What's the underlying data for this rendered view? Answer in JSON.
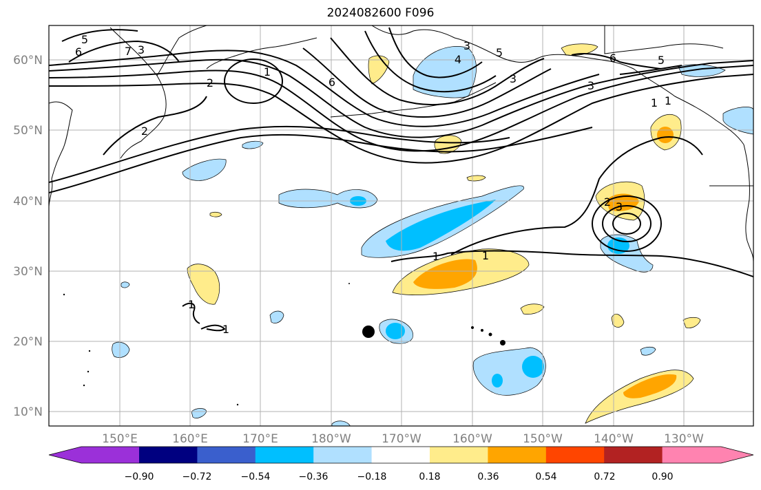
{
  "title": "2024082600 F096",
  "lat_labels": [
    "60°N",
    "50°N",
    "40°N",
    "30°N",
    "20°N",
    "10°N"
  ],
  "lon_labels": [
    "150°E",
    "160°E",
    "170°E",
    "180°W",
    "170°W",
    "160°W",
    "150°W",
    "140°W",
    "130°W"
  ],
  "colorbar": {
    "ticks": [
      "−0.90",
      "−0.72",
      "−0.54",
      "−0.36",
      "−0.18",
      "0.18",
      "0.36",
      "0.54",
      "0.72",
      "0.90"
    ],
    "colors": [
      "#9b30d9",
      "#000080",
      "#3a5fcd",
      "#00bfff",
      "#b0e0ff",
      "#ffffff",
      "#ffec8b",
      "#ffa500",
      "#ff4500",
      "#b22222",
      "#ff83b0"
    ]
  },
  "contour_labels": [
    "5",
    "6",
    "7",
    "3",
    "1",
    "2",
    "3",
    "4",
    "6",
    "5",
    "3",
    "1",
    "6",
    "5",
    "3",
    "1",
    "2",
    "3",
    "1",
    "1",
    "1",
    "1",
    "2"
  ],
  "map": {
    "region": "North Pacific",
    "land_color": "#ffffff",
    "coast_color": "#000000",
    "grid_color": "#b0b0b0",
    "contour_color": "#000000"
  }
}
